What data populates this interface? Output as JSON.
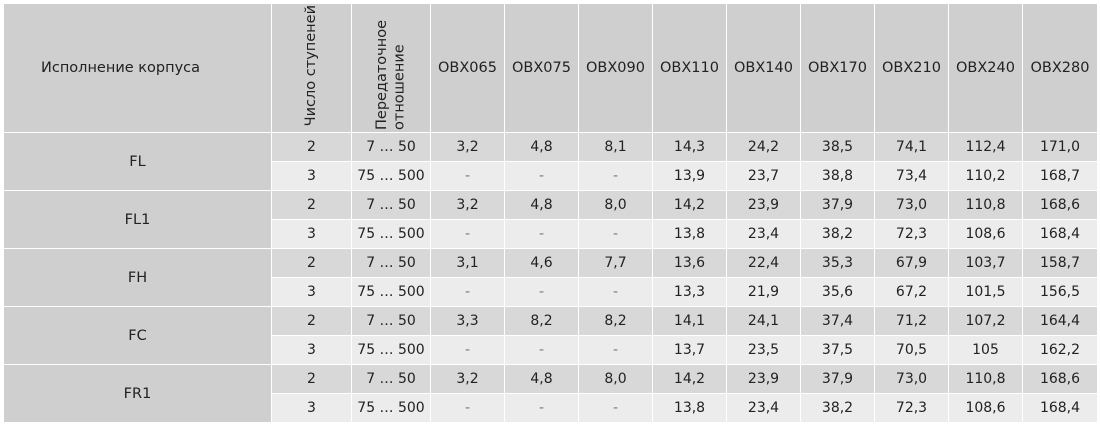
{
  "header": {
    "housing": "Исполнение корпуса",
    "stages": "Число ступеней",
    "ratio": "Передаточное отношение",
    "models": [
      "OBX065",
      "OBX075",
      "OBX090",
      "OBX110",
      "OBX140",
      "OBX170",
      "OBX210",
      "OBX240",
      "OBX280"
    ]
  },
  "groups": [
    {
      "name": "FL",
      "rows": [
        {
          "stages": "2",
          "ratio": "7 … 50",
          "values": [
            "3,2",
            "4,8",
            "8,1",
            "14,3",
            "24,2",
            "38,5",
            "74,1",
            "112,4",
            "171,0"
          ]
        },
        {
          "stages": "3",
          "ratio": "75 … 500",
          "values": [
            "-",
            "-",
            "-",
            "13,9",
            "23,7",
            "38,8",
            "73,4",
            "110,2",
            "168,7"
          ]
        }
      ]
    },
    {
      "name": "FL1",
      "rows": [
        {
          "stages": "2",
          "ratio": "7 … 50",
          "values": [
            "3,2",
            "4,8",
            "8,0",
            "14,2",
            "23,9",
            "37,9",
            "73,0",
            "110,8",
            "168,6"
          ]
        },
        {
          "stages": "3",
          "ratio": "75 … 500",
          "values": [
            "-",
            "-",
            "-",
            "13,8",
            "23,4",
            "38,2",
            "72,3",
            "108,6",
            "168,4"
          ]
        }
      ]
    },
    {
      "name": "FH",
      "rows": [
        {
          "stages": "2",
          "ratio": "7 … 50",
          "values": [
            "3,1",
            "4,6",
            "7,7",
            "13,6",
            "22,4",
            "35,3",
            "67,9",
            "103,7",
            "158,7"
          ]
        },
        {
          "stages": "3",
          "ratio": "75 … 500",
          "values": [
            "-",
            "-",
            "-",
            "13,3",
            "21,9",
            "35,6",
            "67,2",
            "101,5",
            "156,5"
          ]
        }
      ]
    },
    {
      "name": "FC",
      "rows": [
        {
          "stages": "2",
          "ratio": "7 … 50",
          "values": [
            "3,3",
            "8,2",
            "8,2",
            "14,1",
            "24,1",
            "37,4",
            "71,2",
            "107,2",
            "164,4"
          ]
        },
        {
          "stages": "3",
          "ratio": "75 … 500",
          "values": [
            "-",
            "-",
            "-",
            "13,7",
            "23,5",
            "37,5",
            "70,5",
            "105",
            "162,2"
          ]
        }
      ]
    },
    {
      "name": "FR1",
      "rows": [
        {
          "stages": "2",
          "ratio": "7 … 50",
          "values": [
            "3,2",
            "4,8",
            "8,0",
            "14,2",
            "23,9",
            "37,9",
            "73,0",
            "110,8",
            "168,6"
          ]
        },
        {
          "stages": "3",
          "ratio": "75 … 500",
          "values": [
            "-",
            "-",
            "-",
            "13,8",
            "23,4",
            "38,2",
            "72,3",
            "108,6",
            "168,4"
          ]
        }
      ]
    }
  ]
}
